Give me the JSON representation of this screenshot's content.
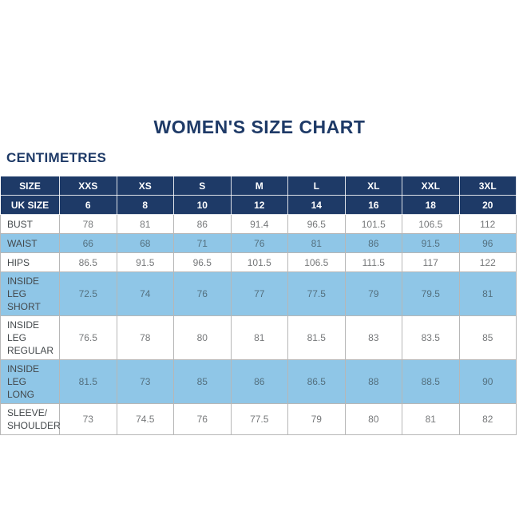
{
  "page": {
    "title": "WOMEN'S SIZE CHART",
    "unit_label": "CENTIMETRES"
  },
  "colors": {
    "navy": "#1e3a67",
    "light_blue": "#8fc6e7",
    "border_grey": "#b7b7b7",
    "label_text": "#43484b",
    "value_text": "#76787a",
    "value_text_shaded": "#54707f"
  },
  "chart_data": {
    "type": "table",
    "title": "WOMEN'S SIZE CHART",
    "units": "CENTIMETRES",
    "header": [
      "SIZE",
      "XXS",
      "XS",
      "S",
      "M",
      "L",
      "XL",
      "XXL",
      "3XL"
    ],
    "uk_size_row": {
      "label": "UK SIZE",
      "values": [
        "6",
        "8",
        "10",
        "12",
        "14",
        "16",
        "18",
        "20"
      ]
    },
    "rows": [
      {
        "label": "BUST",
        "display_label": "BUST",
        "shaded": false,
        "values": [
          "78",
          "81",
          "86",
          "91.4",
          "96.5",
          "101.5",
          "106.5",
          "112"
        ]
      },
      {
        "label": "WAIST",
        "display_label": "WAIST",
        "shaded": true,
        "values": [
          "66",
          "68",
          "71",
          "76",
          "81",
          "86",
          "91.5",
          "96"
        ]
      },
      {
        "label": "HIPS",
        "display_label": "HIPS",
        "shaded": false,
        "values": [
          "86.5",
          "91.5",
          "96.5",
          "101.5",
          "106.5",
          "111.5",
          "117",
          "122"
        ]
      },
      {
        "label": "INSIDE LEG SHORT",
        "display_label": "INSIDE LEG\nSHORT",
        "shaded": true,
        "values": [
          "72.5",
          "74",
          "76",
          "77",
          "77.5",
          "79",
          "79.5",
          "81"
        ]
      },
      {
        "label": "INSIDE LEG REGULAR",
        "display_label": "INSIDE LEG\nREGULAR",
        "shaded": false,
        "values": [
          "76.5",
          "78",
          "80",
          "81",
          "81.5",
          "83",
          "83.5",
          "85"
        ]
      },
      {
        "label": "INSIDE LEG LONG",
        "display_label": "INSIDE LEG\nLONG",
        "shaded": true,
        "values": [
          "81.5",
          "73",
          "85",
          "86",
          "86.5",
          "88",
          "88.5",
          "90"
        ]
      },
      {
        "label": "SLEEVE/SHOULDER",
        "display_label": "SLEEVE/\nSHOULDER",
        "shaded": false,
        "values": [
          "73",
          "74.5",
          "76",
          "77.5",
          "79",
          "80",
          "81",
          "82"
        ]
      }
    ]
  }
}
